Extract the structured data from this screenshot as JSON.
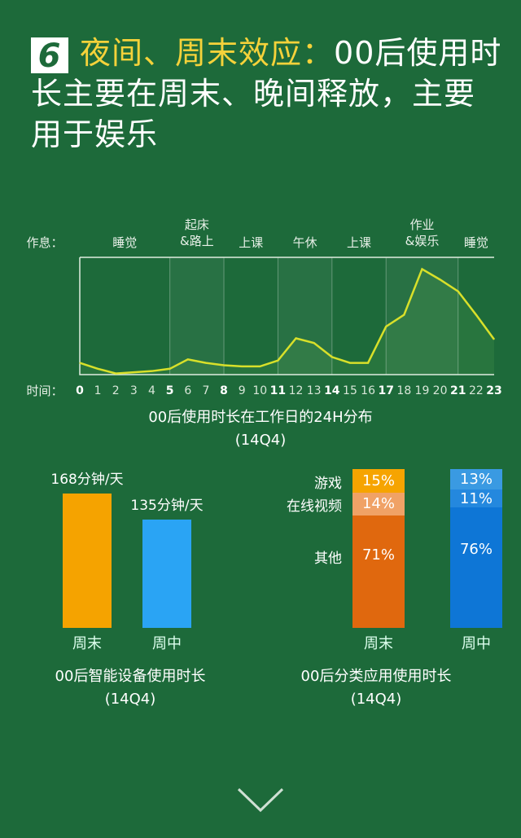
{
  "title": {
    "number": "6",
    "highlight": "夜间、周末效应：",
    "rest": "00后使用时长主要在周末、晚间释放，主要用于娱乐"
  },
  "colors": {
    "background": "#1d6a3a",
    "line": "#d8e02a",
    "weekend": "#f5a300",
    "weekday": "#2aa4f4",
    "games_weekend": "#f6a400",
    "video_weekend": "#f0a266",
    "other_weekend": "#e0680e",
    "games_weekday": "#3a9ae2",
    "video_weekday": "#2488de",
    "other_weekday": "#0e76d6"
  },
  "chart_data": [
    {
      "type": "area",
      "title": "00后使用时长在工作日的24H分布",
      "subtitle": "(14Q4)",
      "row_label_activity": "作息：",
      "row_label_time": "时间：",
      "activities": [
        {
          "label": "睡觉",
          "from": 0,
          "to": 5
        },
        {
          "label": "起床\n&路上",
          "from": 5,
          "to": 8
        },
        {
          "label": "上课",
          "from": 8,
          "to": 11
        },
        {
          "label": "午休",
          "from": 11,
          "to": 14
        },
        {
          "label": "上课",
          "from": 14,
          "to": 17
        },
        {
          "label": "作业\n&娱乐",
          "from": 17,
          "to": 21
        },
        {
          "label": "睡觉",
          "from": 21,
          "to": 23
        }
      ],
      "x": [
        0,
        1,
        2,
        3,
        4,
        5,
        6,
        7,
        8,
        9,
        10,
        11,
        12,
        13,
        14,
        15,
        16,
        17,
        18,
        19,
        20,
        21,
        22,
        23
      ],
      "bold_ticks": [
        0,
        5,
        8,
        11,
        14,
        17,
        21,
        23
      ],
      "values": [
        10,
        5,
        1,
        2,
        3,
        5,
        13,
        10,
        8,
        7,
        7,
        12,
        31,
        27,
        15,
        10,
        10,
        41,
        51,
        90,
        81,
        71,
        51,
        30
      ],
      "ylim": [
        0,
        100
      ],
      "highlighted_ranges": [
        [
          5,
          8
        ],
        [
          11,
          14
        ],
        [
          17,
          21
        ]
      ]
    },
    {
      "type": "bar",
      "title": "00后智能设备使用时长",
      "subtitle": "(14Q4)",
      "categories": [
        "周末",
        "周中"
      ],
      "values": [
        168,
        135
      ],
      "data_labels": [
        "168分钟/天",
        "135分钟/天"
      ],
      "ylim": [
        0,
        168
      ]
    },
    {
      "type": "bar",
      "stacked": true,
      "title": "00后分类应用使用时长",
      "subtitle": "(14Q4)",
      "categories": [
        "周末",
        "周中"
      ],
      "series": [
        {
          "name": "游戏",
          "values": [
            15,
            13
          ],
          "labels": [
            "15%",
            "13%"
          ]
        },
        {
          "name": "在线视频",
          "values": [
            14,
            11
          ],
          "labels": [
            "14%",
            "11%"
          ]
        },
        {
          "name": "其他",
          "values": [
            71,
            76
          ],
          "labels": [
            "71%",
            "76%"
          ]
        }
      ]
    }
  ],
  "nav": {
    "icon": "chevron-down-icon"
  }
}
